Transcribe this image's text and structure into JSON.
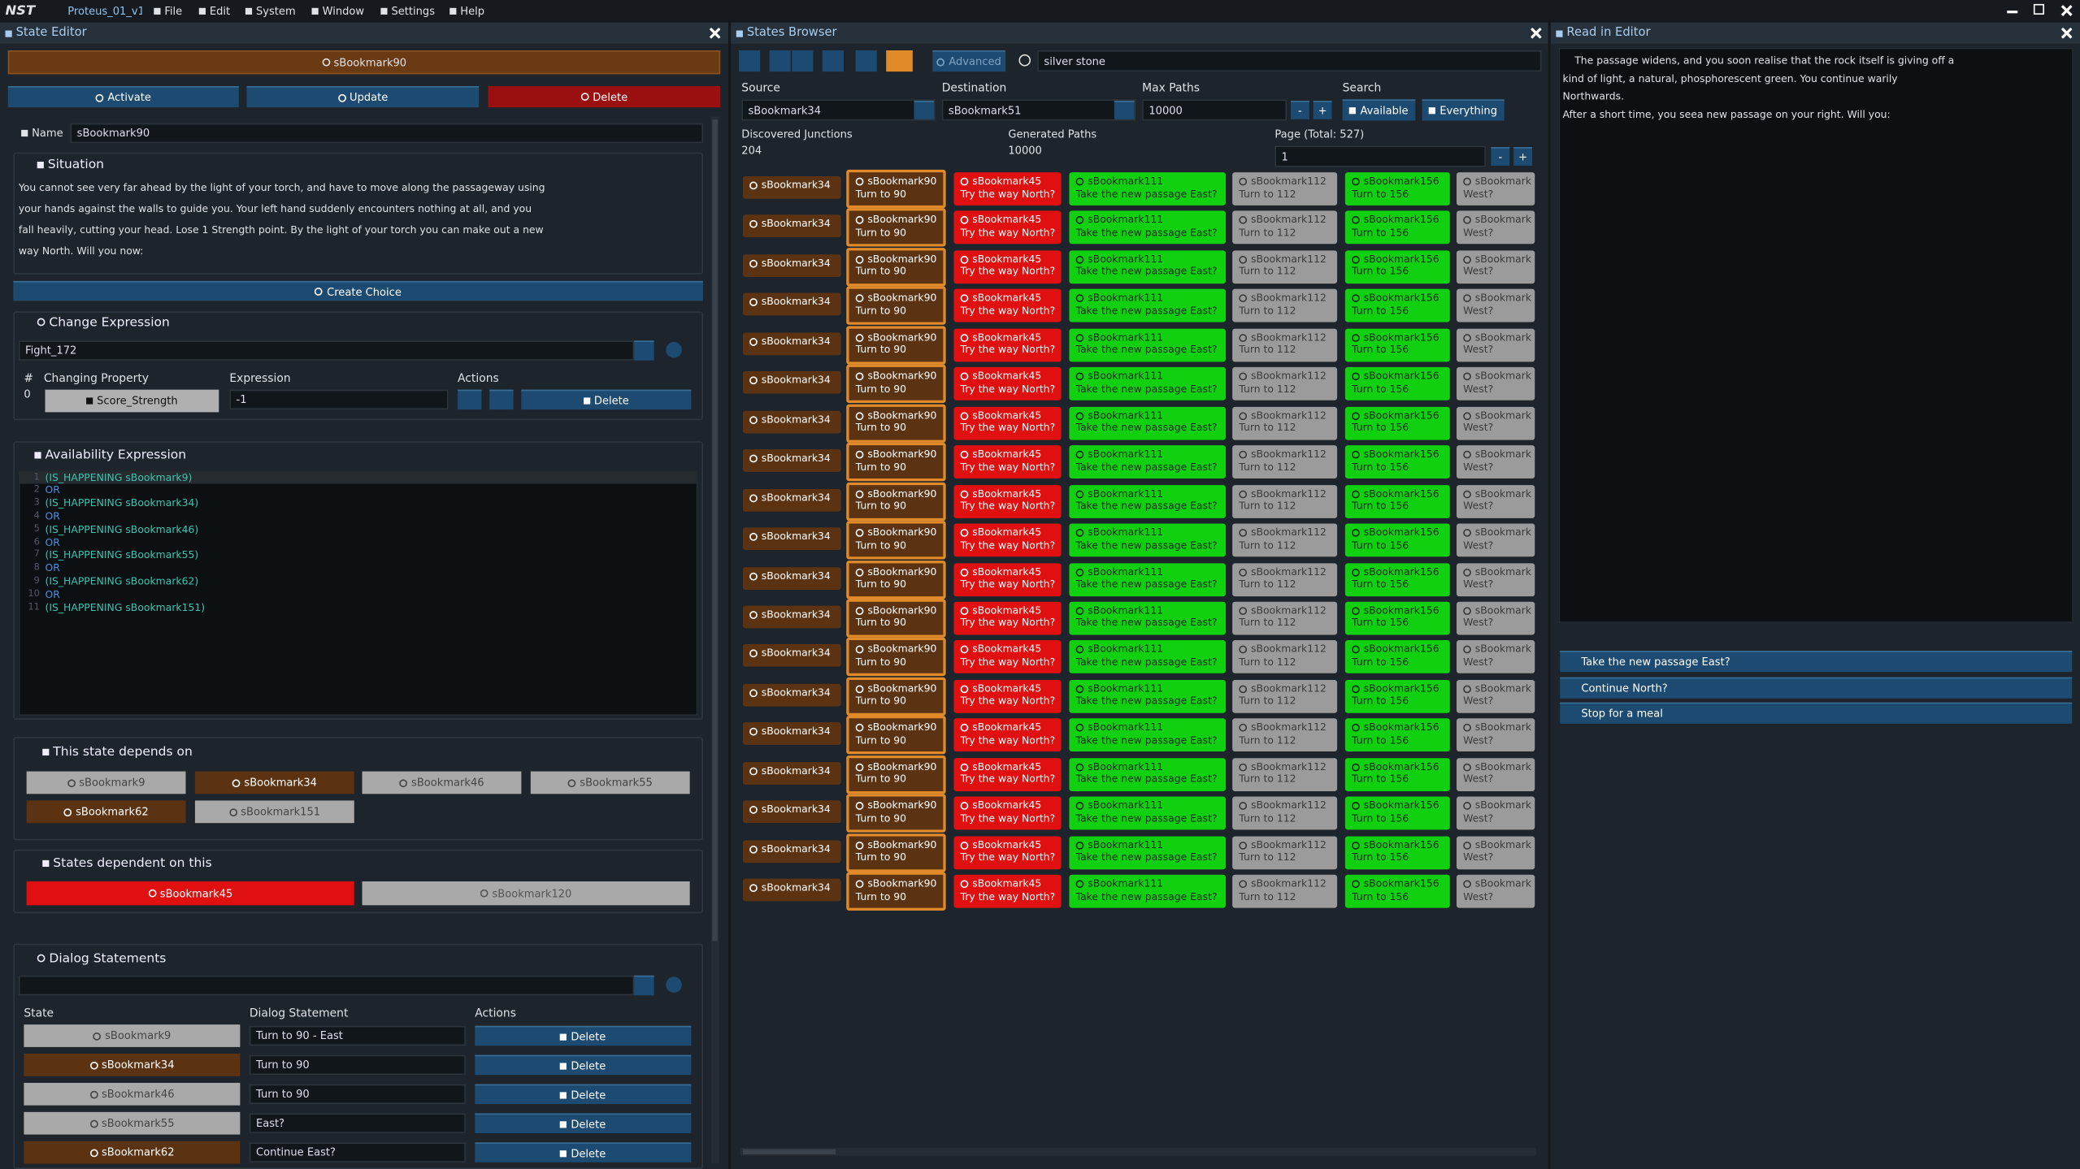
{
  "menu": {
    "logo": "NST",
    "project": "Proteus_01_v1",
    "items": [
      "File",
      "Edit",
      "System",
      "Window",
      "Settings",
      "Help"
    ]
  },
  "state_editor": {
    "title": "State Editor",
    "state": "sBookmark90",
    "buttons": [
      "Activate",
      "Update",
      "Delete"
    ],
    "name_label": "Name",
    "name_value": "sBookmark90",
    "situation": {
      "title": "Situation",
      "text": "You cannot see very far ahead by the light of your torch, and have to move along the passageway using your hands against the walls to guide you. Your left hand suddenly encounters nothing at all, and you fall heavily, cutting your head. Lose 1 Strength point. By the light of your torch you can make out a new way North. Will you now:"
    },
    "create_choice": "Create Choice",
    "change_expression": {
      "title": "Change Expression",
      "selected": "Fight_172",
      "columns": [
        "#",
        "Changing Property",
        "Expression",
        "Actions"
      ],
      "rows": [
        {
          "index": 0,
          "property": "Score_Strength",
          "expression": "-1",
          "action": "Delete"
        }
      ]
    },
    "availability": {
      "title": "Availability Expression",
      "lines": [
        {
          "n": 1,
          "text": "(IS_HAPPENING sBookmark9)"
        },
        {
          "n": 2,
          "text": "OR"
        },
        {
          "n": 3,
          "text": "(IS_HAPPENING sBookmark34)"
        },
        {
          "n": 4,
          "text": "OR"
        },
        {
          "n": 5,
          "text": "(IS_HAPPENING sBookmark46)"
        },
        {
          "n": 6,
          "text": "OR"
        },
        {
          "n": 7,
          "text": "(IS_HAPPENING sBookmark55)"
        },
        {
          "n": 8,
          "text": "OR"
        },
        {
          "n": 9,
          "text": "(IS_HAPPENING sBookmark62)"
        },
        {
          "n": 10,
          "text": "OR"
        },
        {
          "n": 11,
          "text": "(IS_HAPPENING sBookmark151)"
        }
      ]
    },
    "depends_on": {
      "title": "This state depends on",
      "states": [
        {
          "name": "sBookmark9",
          "color": "#a9a9a9"
        },
        {
          "name": "sBookmark34",
          "color": "#5c3312"
        },
        {
          "name": "sBookmark46",
          "color": "#a9a9a9"
        },
        {
          "name": "sBookmark55",
          "color": "#a9a9a9"
        },
        {
          "name": "sBookmark62",
          "color": "#5c3312"
        },
        {
          "name": "sBookmark151",
          "color": "#a9a9a9"
        }
      ]
    },
    "dependents": {
      "title": "States dependent on this",
      "states": [
        {
          "name": "sBookmark45",
          "color": "#e01010"
        },
        {
          "name": "sBookmark120",
          "color": "#a9a9a9"
        }
      ]
    },
    "dialog": {
      "title": "Dialog Statements",
      "columns": [
        "State",
        "Dialog Statement",
        "Actions"
      ],
      "rows": [
        {
          "state": "sBookmark9",
          "color": "#a9a9a9",
          "statement": "Turn to 90 - East",
          "action": "Delete"
        },
        {
          "state": "sBookmark34",
          "color": "#5c3312",
          "statement": "Turn to 90",
          "action": "Delete"
        },
        {
          "state": "sBookmark46",
          "color": "#a9a9a9",
          "statement": "Turn to 90",
          "action": "Delete"
        },
        {
          "state": "sBookmark55",
          "color": "#a9a9a9",
          "statement": "East?",
          "action": "Delete"
        },
        {
          "state": "sBookmark62",
          "color": "#5c3312",
          "statement": "Continue East?",
          "action": "Delete"
        }
      ]
    }
  },
  "states_browser": {
    "title": "States Browser",
    "advanced": "Advanced",
    "search": "silver stone",
    "labels": [
      "Source",
      "Destination",
      "Max Paths",
      "Search"
    ],
    "source": "sBookmark34",
    "destination": "sBookmark51",
    "max_paths": "10000",
    "minus": "-",
    "plus": "+",
    "available": "Available",
    "everything": "Everything",
    "stats": [
      {
        "label": "Discovered Junctions",
        "value": "204"
      },
      {
        "label": "Generated Paths",
        "value": "10000"
      }
    ],
    "page_label": "Page (Total: 527)",
    "page": "1",
    "column_colors": [
      "#5c3312",
      "#5c3312",
      "#e01010",
      "#10d010",
      "#9b9b9b",
      "#10d010",
      "#9b9b9b"
    ],
    "rows": [
      [
        [
          "sBookmark34"
        ],
        [
          "sBookmark90",
          "Turn to 90"
        ],
        [
          "sBookmark45",
          "Try the way North?"
        ],
        [
          "sBookmark111",
          "Take the new passage East?"
        ],
        [
          "sBookmark112",
          "Turn to 112"
        ],
        [
          "sBookmark156",
          "Turn to 156"
        ],
        [
          "sBookmark",
          "West?"
        ]
      ],
      [
        [
          "sBookmark34"
        ],
        [
          "sBookmark90",
          "Turn to 90"
        ],
        [
          "sBookmark45",
          "Try the way North?"
        ],
        [
          "sBookmark111",
          "Take the new passage East?"
        ],
        [
          "sBookmark112",
          "Turn to 112"
        ],
        [
          "sBookmark156",
          "Turn to 156"
        ],
        [
          "sBookmark",
          "West?"
        ]
      ],
      [
        [
          "sBookmark34"
        ],
        [
          "sBookmark90",
          "Turn to 90"
        ],
        [
          "sBookmark45",
          "Try the way North?"
        ],
        [
          "sBookmark111",
          "Take the new passage East?"
        ],
        [
          "sBookmark112",
          "Turn to 112"
        ],
        [
          "sBookmark156",
          "Turn to 156"
        ],
        [
          "sBookmark",
          "West?"
        ]
      ],
      [
        [
          "sBookmark34"
        ],
        [
          "sBookmark90",
          "Turn to 90"
        ],
        [
          "sBookmark45",
          "Try the way North?"
        ],
        [
          "sBookmark111",
          "Take the new passage East?"
        ],
        [
          "sBookmark112",
          "Turn to 112"
        ],
        [
          "sBookmark156",
          "Turn to 156"
        ],
        [
          "sBookmark",
          "West?"
        ]
      ],
      [
        [
          "sBookmark34"
        ],
        [
          "sBookmark90",
          "Turn to 90"
        ],
        [
          "sBookmark45",
          "Try the way North?"
        ],
        [
          "sBookmark111",
          "Take the new passage East?"
        ],
        [
          "sBookmark112",
          "Turn to 112"
        ],
        [
          "sBookmark156",
          "Turn to 156"
        ],
        [
          "sBookmark",
          "West?"
        ]
      ],
      [
        [
          "sBookmark34"
        ],
        [
          "sBookmark90",
          "Turn to 90"
        ],
        [
          "sBookmark45",
          "Try the way North?"
        ],
        [
          "sBookmark111",
          "Take the new passage East?"
        ],
        [
          "sBookmark112",
          "Turn to 112"
        ],
        [
          "sBookmark156",
          "Turn to 156"
        ],
        [
          "sBookmark",
          "West?"
        ]
      ],
      [
        [
          "sBookmark34"
        ],
        [
          "sBookmark90",
          "Turn to 90"
        ],
        [
          "sBookmark45",
          "Try the way North?"
        ],
        [
          "sBookmark111",
          "Take the new passage East?"
        ],
        [
          "sBookmark112",
          "Turn to 112"
        ],
        [
          "sBookmark156",
          "Turn to 156"
        ],
        [
          "sBookmark",
          "West?"
        ]
      ],
      [
        [
          "sBookmark34"
        ],
        [
          "sBookmark90",
          "Turn to 90"
        ],
        [
          "sBookmark45",
          "Try the way North?"
        ],
        [
          "sBookmark111",
          "Take the new passage East?"
        ],
        [
          "sBookmark112",
          "Turn to 112"
        ],
        [
          "sBookmark156",
          "Turn to 156"
        ],
        [
          "sBookmark",
          "West?"
        ]
      ],
      [
        [
          "sBookmark34"
        ],
        [
          "sBookmark90",
          "Turn to 90"
        ],
        [
          "sBookmark45",
          "Try the way North?"
        ],
        [
          "sBookmark111",
          "Take the new passage East?"
        ],
        [
          "sBookmark112",
          "Turn to 112"
        ],
        [
          "sBookmark156",
          "Turn to 156"
        ],
        [
          "sBookmark",
          "West?"
        ]
      ],
      [
        [
          "sBookmark34"
        ],
        [
          "sBookmark90",
          "Turn to 90"
        ],
        [
          "sBookmark45",
          "Try the way North?"
        ],
        [
          "sBookmark111",
          "Take the new passage East?"
        ],
        [
          "sBookmark112",
          "Turn to 112"
        ],
        [
          "sBookmark156",
          "Turn to 156"
        ],
        [
          "sBookmark",
          "West?"
        ]
      ],
      [
        [
          "sBookmark34"
        ],
        [
          "sBookmark90",
          "Turn to 90"
        ],
        [
          "sBookmark45",
          "Try the way North?"
        ],
        [
          "sBookmark111",
          "Take the new passage East?"
        ],
        [
          "sBookmark112",
          "Turn to 112"
        ],
        [
          "sBookmark156",
          "Turn to 156"
        ],
        [
          "sBookmark",
          "West?"
        ]
      ],
      [
        [
          "sBookmark34"
        ],
        [
          "sBookmark90",
          "Turn to 90"
        ],
        [
          "sBookmark45",
          "Try the way North?"
        ],
        [
          "sBookmark111",
          "Take the new passage East?"
        ],
        [
          "sBookmark112",
          "Turn to 112"
        ],
        [
          "sBookmark156",
          "Turn to 156"
        ],
        [
          "sBookmark",
          "West?"
        ]
      ],
      [
        [
          "sBookmark34"
        ],
        [
          "sBookmark90",
          "Turn to 90"
        ],
        [
          "sBookmark45",
          "Try the way North?"
        ],
        [
          "sBookmark111",
          "Take the new passage East?"
        ],
        [
          "sBookmark112",
          "Turn to 112"
        ],
        [
          "sBookmark156",
          "Turn to 156"
        ],
        [
          "sBookmark",
          "West?"
        ]
      ],
      [
        [
          "sBookmark34"
        ],
        [
          "sBookmark90",
          "Turn to 90"
        ],
        [
          "sBookmark45",
          "Try the way North?"
        ],
        [
          "sBookmark111",
          "Take the new passage East?"
        ],
        [
          "sBookmark112",
          "Turn to 112"
        ],
        [
          "sBookmark156",
          "Turn to 156"
        ],
        [
          "sBookmark",
          "West?"
        ]
      ],
      [
        [
          "sBookmark34"
        ],
        [
          "sBookmark90",
          "Turn to 90"
        ],
        [
          "sBookmark45",
          "Try the way North?"
        ],
        [
          "sBookmark111",
          "Take the new passage East?"
        ],
        [
          "sBookmark112",
          "Turn to 112"
        ],
        [
          "sBookmark156",
          "Turn to 156"
        ],
        [
          "sBookmark",
          "West?"
        ]
      ],
      [
        [
          "sBookmark34"
        ],
        [
          "sBookmark90",
          "Turn to 90"
        ],
        [
          "sBookmark45",
          "Try the way North?"
        ],
        [
          "sBookmark111",
          "Take the new passage East?"
        ],
        [
          "sBookmark112",
          "Turn to 112"
        ],
        [
          "sBookmark156",
          "Turn to 156"
        ],
        [
          "sBookmark",
          "West?"
        ]
      ],
      [
        [
          "sBookmark34"
        ],
        [
          "sBookmark90",
          "Turn to 90"
        ],
        [
          "sBookmark45",
          "Try the way North?"
        ],
        [
          "sBookmark111",
          "Take the new passage East?"
        ],
        [
          "sBookmark112",
          "Turn to 112"
        ],
        [
          "sBookmark156",
          "Turn to 156"
        ],
        [
          "sBookmark",
          "West?"
        ]
      ],
      [
        [
          "sBookmark34"
        ],
        [
          "sBookmark90",
          "Turn to 90"
        ],
        [
          "sBookmark45",
          "Try the way North?"
        ],
        [
          "sBookmark111",
          "Take the new passage East?"
        ],
        [
          "sBookmark112",
          "Turn to 112"
        ],
        [
          "sBookmark156",
          "Turn to 156"
        ],
        [
          "sBookmark",
          "West?"
        ]
      ],
      [
        [
          "sBookmark34"
        ],
        [
          "sBookmark90",
          "Turn to 90"
        ],
        [
          "sBookmark45",
          "Try the way North?"
        ],
        [
          "sBookmark111",
          "Take the new passage East?"
        ],
        [
          "sBookmark112",
          "Turn to 112"
        ],
        [
          "sBookmark156",
          "Turn to 156"
        ],
        [
          "sBookmark",
          "West?"
        ]
      ]
    ]
  },
  "read_in_editor": {
    "title": "Read in Editor",
    "paragraphs": [
      "The passage widens, and you soon realise that the rock itself is giving off a kind of light, a natural, phosphorescent green. You continue warily Northwards.",
      "After a short time, you seea new passage on your right. Will you:"
    ],
    "choices": [
      "Take the new passage East?",
      "Continue North?",
      "Stop for a meal"
    ]
  }
}
